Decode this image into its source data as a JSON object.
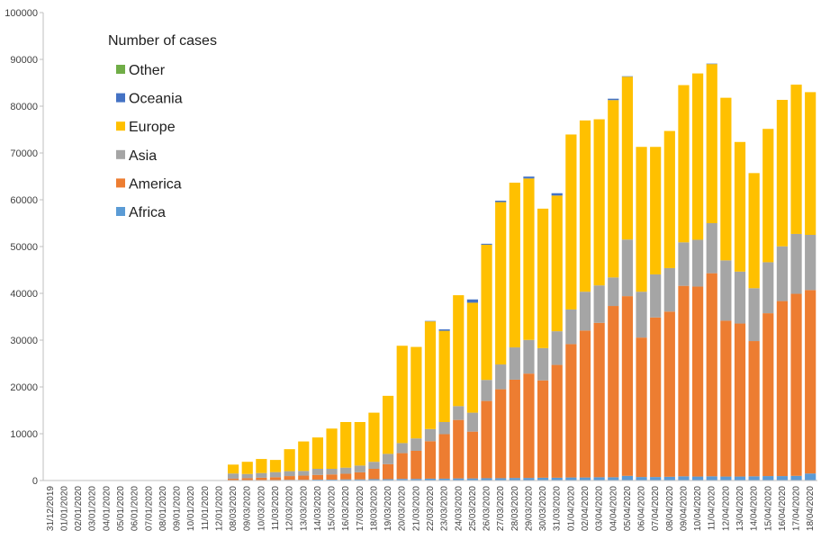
{
  "chart_data": {
    "type": "bar",
    "stacked": true,
    "legend": {
      "title": "Number of cases",
      "placement": "top-left",
      "order": [
        "Other",
        "Oceania",
        "Europe",
        "Asia",
        "America",
        "Africa"
      ]
    },
    "ylim": [
      0,
      100000
    ],
    "yticks": [
      0,
      10000,
      20000,
      30000,
      40000,
      50000,
      60000,
      70000,
      80000,
      90000,
      100000
    ],
    "grid": false,
    "categories": [
      "31/12/2019",
      "01/01/2020",
      "02/01/2020",
      "03/01/2020",
      "04/01/2020",
      "05/01/2020",
      "06/01/2020",
      "07/01/2020",
      "08/01/2020",
      "09/01/2020",
      "10/01/2020",
      "11/01/2020",
      "12/01/2020",
      "08/03/2020",
      "09/03/2020",
      "10/03/2020",
      "11/03/2020",
      "12/03/2020",
      "13/03/2020",
      "14/03/2020",
      "15/03/2020",
      "16/03/2020",
      "17/03/2020",
      "18/03/2020",
      "19/03/2020",
      "20/03/2020",
      "21/03/2020",
      "22/03/2020",
      "23/03/2020",
      "24/03/2020",
      "25/03/2020",
      "26/03/2020",
      "27/03/2020",
      "28/03/2020",
      "29/03/2020",
      "30/03/2020",
      "31/03/2020",
      "01/04/2020",
      "02/04/2020",
      "03/04/2020",
      "04/04/2020",
      "05/04/2020",
      "06/04/2020",
      "07/04/2020",
      "08/04/2020",
      "09/04/2020",
      "10/04/2020",
      "11/04/2020",
      "12/04/2020",
      "13/04/2020",
      "14/04/2020",
      "15/04/2020",
      "16/04/2020",
      "17/04/2020",
      "18/04/2020"
    ],
    "series": [
      {
        "name": "Africa",
        "color": "#5b9bd5",
        "values": [
          0,
          0,
          0,
          0,
          0,
          0,
          0,
          0,
          0,
          0,
          0,
          0,
          0,
          100,
          100,
          100,
          100,
          150,
          150,
          200,
          200,
          250,
          250,
          300,
          300,
          350,
          350,
          400,
          400,
          450,
          450,
          500,
          500,
          550,
          550,
          600,
          600,
          650,
          650,
          700,
          700,
          1000,
          750,
          750,
          800,
          900,
          850,
          900,
          850,
          850,
          900,
          950,
          950,
          1000,
          1500
        ]
      },
      {
        "name": "America",
        "color": "#ed7d31",
        "values": [
          0,
          0,
          0,
          0,
          0,
          0,
          0,
          0,
          0,
          0,
          0,
          0,
          0,
          300,
          400,
          500,
          600,
          800,
          900,
          1000,
          1100,
          1200,
          1500,
          2200,
          3200,
          5500,
          6000,
          8000,
          9500,
          12500,
          10000,
          16500,
          19000,
          21000,
          22300,
          20800,
          24100,
          28500,
          31400,
          33000,
          36600,
          38400,
          29800,
          34100,
          35300,
          40700,
          40600,
          43400,
          33300,
          32700,
          28900,
          34800,
          37400,
          38900,
          39200
        ]
      },
      {
        "name": "Asia",
        "color": "#a5a5a5",
        "values": [
          0,
          0,
          0,
          0,
          0,
          0,
          0,
          0,
          0,
          0,
          0,
          0,
          0,
          1100,
          900,
          1000,
          1100,
          1050,
          1000,
          1300,
          1200,
          1300,
          1450,
          1500,
          2200,
          2150,
          2650,
          2600,
          2600,
          2950,
          4050,
          4500,
          5300,
          6900,
          7200,
          6900,
          7200,
          7400,
          8300,
          8000,
          6100,
          12100,
          9800,
          9200,
          9300,
          9300,
          10000,
          10700,
          12900,
          11100,
          11300,
          10900,
          11700,
          12800,
          11800
        ]
      },
      {
        "name": "Europe",
        "color": "#ffc000",
        "values": [
          0,
          0,
          0,
          0,
          0,
          0,
          0,
          0,
          0,
          0,
          0,
          0,
          0,
          1900,
          2600,
          3000,
          2600,
          4700,
          6300,
          6700,
          8600,
          9750,
          9300,
          10500,
          12400,
          20800,
          19550,
          23000,
          19500,
          23700,
          23500,
          28900,
          34700,
          35200,
          34500,
          29800,
          29000,
          37400,
          36600,
          35500,
          37900,
          34800,
          30950,
          27250,
          29300,
          33600,
          35550,
          34000,
          34750,
          27700,
          24600,
          28500,
          31300,
          31900,
          30500
        ]
      },
      {
        "name": "Oceania",
        "color": "#4472c4",
        "values": [
          0,
          0,
          0,
          0,
          0,
          0,
          0,
          0,
          0,
          0,
          0,
          0,
          0,
          0,
          0,
          0,
          0,
          0,
          0,
          0,
          0,
          0,
          0,
          0,
          0,
          0,
          0,
          100,
          300,
          0,
          700,
          200,
          300,
          0,
          400,
          0,
          500,
          0,
          0,
          0,
          300,
          100,
          0,
          0,
          0,
          0,
          0,
          100,
          0,
          0,
          0,
          0,
          0,
          0,
          0
        ]
      },
      {
        "name": "Other",
        "color": "#70ad47",
        "values": [
          0,
          0,
          0,
          0,
          0,
          0,
          0,
          0,
          0,
          0,
          0,
          0,
          0,
          0,
          0,
          0,
          0,
          0,
          0,
          0,
          0,
          0,
          0,
          0,
          0,
          0,
          0,
          0,
          0,
          0,
          0,
          0,
          0,
          0,
          0,
          0,
          0,
          0,
          0,
          0,
          0,
          0,
          0,
          0,
          0,
          0,
          0,
          0,
          0,
          0,
          0,
          0,
          0,
          0,
          0
        ]
      }
    ]
  }
}
